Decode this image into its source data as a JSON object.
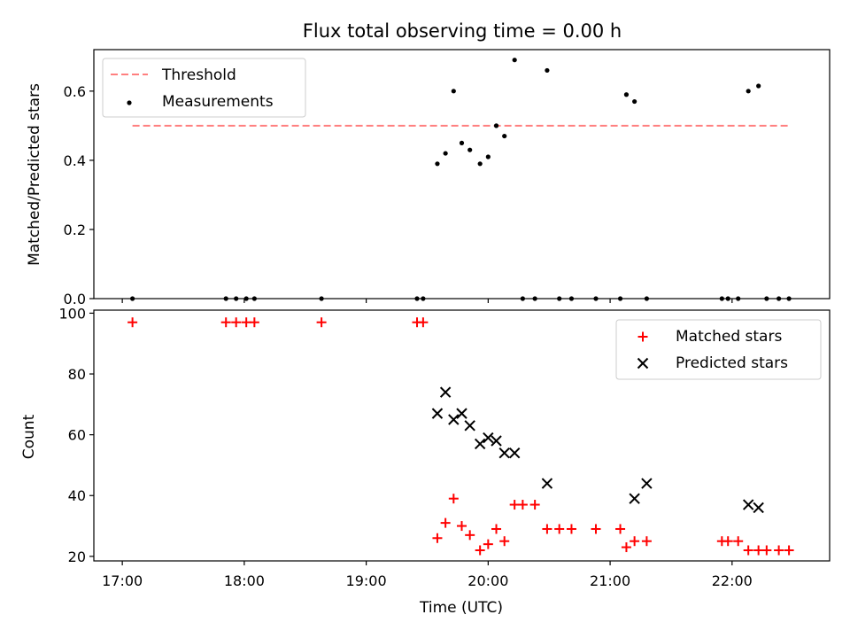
{
  "chart_data": [
    {
      "type": "scatter",
      "title": "Flux total observing time = 0.00 h",
      "xlabel": "",
      "ylabel": "Matched/Predicted stars",
      "xlim": [
        "16:46",
        "22:48"
      ],
      "ylim": [
        0,
        0.72
      ],
      "yticks": [
        0.0,
        0.2,
        0.4,
        0.6
      ],
      "ytick_labels": [
        "0.0",
        "0.2",
        "0.4",
        "0.6"
      ],
      "legend_position": "top-left",
      "colors": {
        "threshold": "#ff7f7f",
        "measurements": "#000000"
      },
      "threshold": {
        "name": "Threshold",
        "x": [
          "17:05",
          "22:28"
        ],
        "y": 0.5
      },
      "series": [
        {
          "name": "Measurements",
          "x": [
            "17:05",
            "17:51",
            "17:56",
            "18:01",
            "18:05",
            "18:38",
            "19:25",
            "19:28",
            "19:35",
            "19:39",
            "19:43",
            "19:47",
            "19:51",
            "19:56",
            "20:00",
            "20:04",
            "20:08",
            "20:13",
            "20:17",
            "20:23",
            "20:29",
            "20:35",
            "20:41",
            "20:53",
            "21:05",
            "21:08",
            "21:12",
            "21:18",
            "21:55",
            "21:58",
            "22:03",
            "22:08",
            "22:13",
            "22:17",
            "22:23",
            "22:28"
          ],
          "y": [
            0.0,
            0.0,
            0.0,
            0.0,
            0.0,
            0.0,
            0.0,
            0.0,
            0.39,
            0.42,
            0.6,
            0.45,
            0.43,
            0.39,
            0.41,
            0.5,
            0.47,
            0.69,
            0.0,
            0.0,
            0.66,
            0.0,
            0.0,
            0.0,
            0.0,
            0.59,
            0.57,
            0.0,
            0.0,
            0.0,
            0.0,
            0.6,
            0.615,
            0.0,
            0.0,
            0.0
          ]
        }
      ]
    },
    {
      "type": "scatter",
      "title": "",
      "xlabel": "Time (UTC)",
      "ylabel": "Count",
      "xlim": [
        "16:46",
        "22:48"
      ],
      "ylim": [
        18.5,
        101
      ],
      "xticks": [
        "17:00",
        "18:00",
        "19:00",
        "20:00",
        "21:00",
        "22:00"
      ],
      "yticks": [
        20,
        40,
        60,
        80,
        100
      ],
      "ytick_labels": [
        "20",
        "40",
        "60",
        "80",
        "100"
      ],
      "legend_position": "top-right",
      "colors": {
        "matched": "#ff0000",
        "predicted": "#000000"
      },
      "series": [
        {
          "name": "Matched stars",
          "marker": "plus",
          "x": [
            "17:05",
            "17:51",
            "17:56",
            "18:01",
            "18:05",
            "18:38",
            "19:25",
            "19:28",
            "19:35",
            "19:39",
            "19:43",
            "19:47",
            "19:51",
            "19:56",
            "20:00",
            "20:04",
            "20:08",
            "20:13",
            "20:17",
            "20:23",
            "20:29",
            "20:35",
            "20:41",
            "20:53",
            "21:05",
            "21:08",
            "21:12",
            "21:18",
            "21:55",
            "21:58",
            "22:03",
            "22:08",
            "22:13",
            "22:17",
            "22:23",
            "22:28"
          ],
          "y": [
            97,
            97,
            97,
            97,
            97,
            97,
            97,
            97,
            26,
            31,
            39,
            30,
            27,
            22,
            24,
            29,
            25,
            37,
            37,
            37,
            29,
            29,
            29,
            29,
            29,
            23,
            25,
            25,
            25,
            25,
            25,
            22,
            22,
            22,
            22,
            22
          ]
        },
        {
          "name": "Predicted stars",
          "marker": "x",
          "x": [
            "19:35",
            "19:39",
            "19:43",
            "19:47",
            "19:51",
            "19:56",
            "20:00",
            "20:04",
            "20:08",
            "20:13",
            "20:29",
            "21:12",
            "21:18",
            "22:08",
            "22:13"
          ],
          "y": [
            67,
            74,
            65,
            67,
            63,
            57,
            59,
            58,
            54,
            54,
            44,
            39,
            44,
            37,
            36
          ]
        }
      ]
    }
  ]
}
